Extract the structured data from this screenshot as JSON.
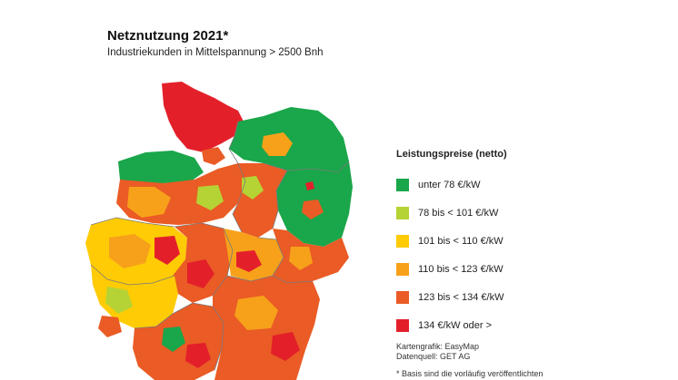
{
  "header": {
    "title": "Netznutzung 2021*",
    "subtitle": "Industriekunden in Mittelspannung > 2500 Bnh"
  },
  "legend": {
    "title": "Leistungspreise (netto)",
    "items": [
      {
        "label": "unter 78 €/kW",
        "color": "#1aa64a"
      },
      {
        "label": "78 bis < 101 €/kW",
        "color": "#b5d334"
      },
      {
        "label": "101 bis < 110 €/kW",
        "color": "#ffcb05"
      },
      {
        "label": "110 bis < 123 €/kW",
        "color": "#f7a11a"
      },
      {
        "label": "123 bis < 134 €/kW",
        "color": "#ea5b25"
      },
      {
        "label": "134 €/kW oder >",
        "color": "#e3202a"
      }
    ]
  },
  "credits": {
    "line1": "Kartengrafik: EasyMap",
    "line2": "Datenquell: GET AG"
  },
  "footnote": "* Basis sind die vorläufig veröffentlichten",
  "map": {
    "border_color": "#7a7a7a"
  }
}
